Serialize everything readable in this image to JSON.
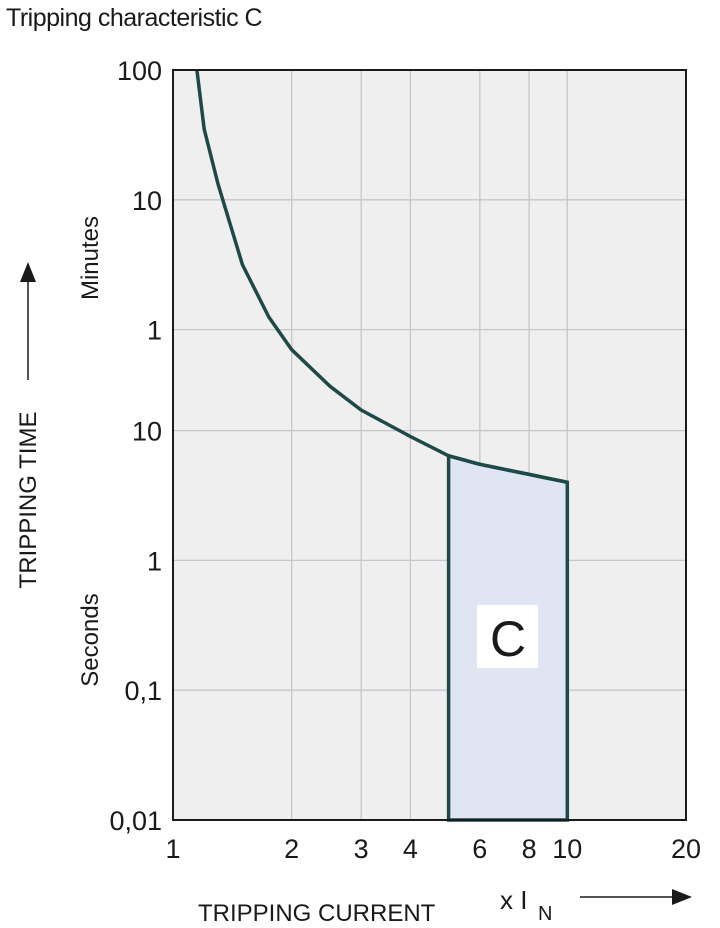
{
  "title": "Tripping characteristic C",
  "chart_data": {
    "type": "line",
    "title": "Tripping characteristic C",
    "xlabel": "TRIPPING CURRENT",
    "xunit_prefix": "x I",
    "xunit_sub": "N",
    "ylabel": "TRIPPING TIME",
    "ylabel_minutes": "Minutes",
    "ylabel_seconds": "Seconds",
    "x_scale": "log",
    "y_scale": "log",
    "xlim": [
      1,
      20
    ],
    "ylim_seconds": [
      0.01,
      6000
    ],
    "grid": true,
    "x_ticks": [
      {
        "value": 1,
        "label": "1"
      },
      {
        "value": 2,
        "label": "2"
      },
      {
        "value": 3,
        "label": "3"
      },
      {
        "value": 4,
        "label": "4"
      },
      {
        "value": 6,
        "label": "6"
      },
      {
        "value": 8,
        "label": "8"
      },
      {
        "value": 10,
        "label": "10"
      },
      {
        "value": 20,
        "label": "20"
      }
    ],
    "x_gridlines": [
      2,
      3,
      4,
      6,
      8,
      10
    ],
    "y_ticks": [
      {
        "seconds": 6000,
        "label": "100"
      },
      {
        "seconds": 600,
        "label": "10"
      },
      {
        "seconds": 60,
        "label": "1"
      },
      {
        "seconds": 10,
        "label": "10"
      },
      {
        "seconds": 1,
        "label": "1"
      },
      {
        "seconds": 0.1,
        "label": "0,1"
      },
      {
        "seconds": 0.01,
        "label": "0,01"
      }
    ],
    "series": [
      {
        "x": [
          1.15,
          1.2,
          1.3,
          1.5,
          1.75,
          2,
          2.5,
          3,
          4,
          5,
          6,
          8,
          10
        ],
        "y_seconds": [
          6000,
          2100,
          800,
          190,
          75,
          42,
          22,
          14.4,
          9,
          6.4,
          5.5,
          4.6,
          4
        ]
      }
    ],
    "region": {
      "label": "C",
      "x_from": 5,
      "x_to": 10,
      "y_bottom_seconds": 0.01
    },
    "colors": {
      "plot_bg": "#efefef",
      "grid": "#c6c6cc",
      "curve": "#1d4a48",
      "region_fill": "#dfe5f2"
    }
  }
}
